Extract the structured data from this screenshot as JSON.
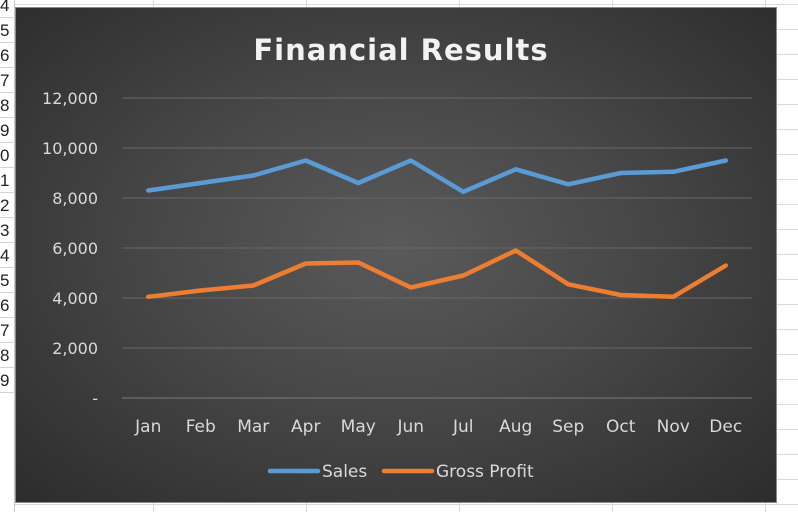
{
  "row_headers": [
    "4",
    "5",
    "6",
    "7",
    "8",
    "9",
    "0",
    "1",
    "2",
    "3",
    "4",
    "5",
    "6",
    "7",
    "8",
    "9"
  ],
  "chart_data": {
    "type": "line",
    "title": "Financial Results",
    "categories": [
      "Jan",
      "Feb",
      "Mar",
      "Apr",
      "May",
      "Jun",
      "Jul",
      "Aug",
      "Sep",
      "Oct",
      "Nov",
      "Dec"
    ],
    "ylim": [
      0,
      12000
    ],
    "yticks": [
      0,
      2000,
      4000,
      6000,
      8000,
      10000,
      12000
    ],
    "ytick_labels": [
      "-",
      "2,000",
      "4,000",
      "6,000",
      "8,000",
      "10,000",
      "12,000"
    ],
    "grid": true,
    "legend_position": "bottom",
    "series": [
      {
        "name": "Sales",
        "color": "#5b9bd5",
        "values": [
          8300,
          8600,
          8900,
          9500,
          8600,
          9500,
          8250,
          9150,
          8550,
          9000,
          9050,
          9500
        ]
      },
      {
        "name": "Gross Profit",
        "color": "#ed7d31",
        "values": [
          4050,
          4300,
          4500,
          5380,
          5420,
          4420,
          4900,
          5900,
          4550,
          4120,
          4050,
          5300
        ]
      }
    ]
  }
}
